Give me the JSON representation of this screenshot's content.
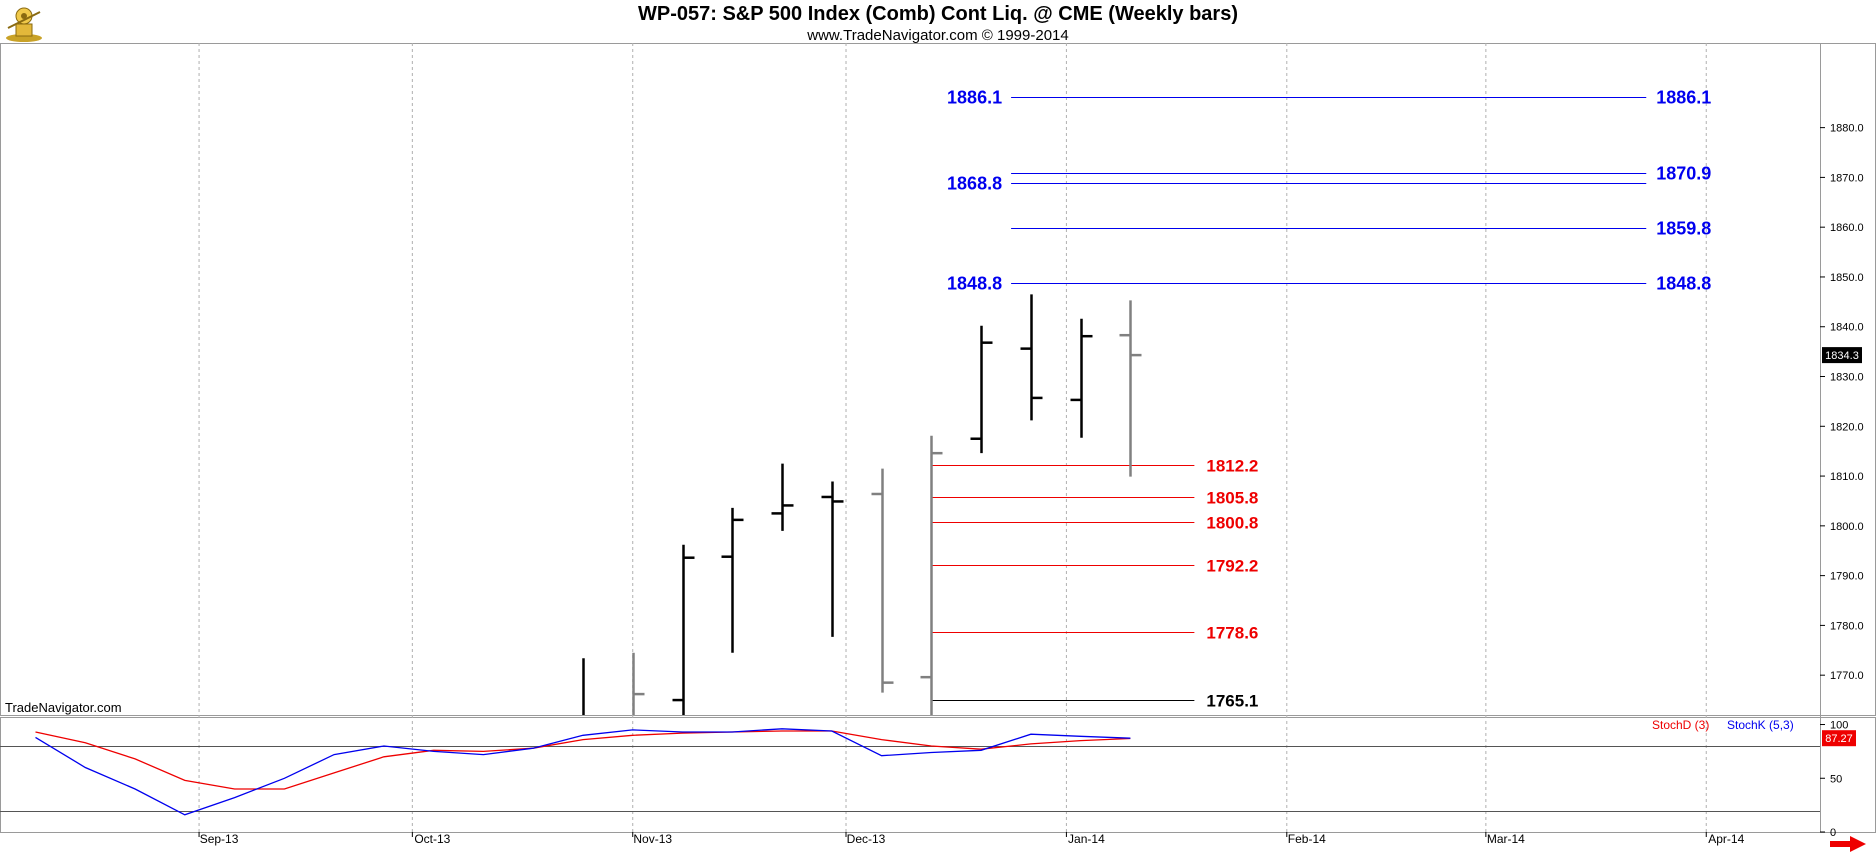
{
  "header": {
    "title": "WP-057:  S&P 500 Index (Comb) Cont Liq. @ CME  (Weekly bars)",
    "subtitle": "www.TradeNavigator.com © 1999-2014",
    "watermark": "TradeNavigator.com"
  },
  "colors": {
    "bar_up": "#000000",
    "bar_down": "#808080",
    "resistance": "#0000ee",
    "support": "#ee0000",
    "support_base": "#000000",
    "stoch_d": "#ee0000",
    "stoch_k": "#0000ee",
    "gridline": "#b0b0b0",
    "last_price_bg": "#000000",
    "stoch_value_bg": "#ee0000"
  },
  "chart_data": [
    {
      "type": "ohlc",
      "ylim": [
        1762,
        1897
      ],
      "yticks": [
        1770,
        1780,
        1790,
        1800,
        1810,
        1820,
        1830,
        1840,
        1850,
        1860,
        1870,
        1880
      ],
      "ytick_labels": [
        "1770.0",
        "1780.0",
        "1790.0",
        "1800.0",
        "1810.0",
        "1820.0",
        "1830.0",
        "1840.0",
        "1850.0",
        "1860.0",
        "1870.0",
        "1880.0"
      ],
      "xticks": [
        "2013-09-01",
        "2013-10-01",
        "2013-11-01",
        "2013-12-01",
        "2014-01-01",
        "2014-02-01",
        "2014-03-01",
        "2014-04-01"
      ],
      "xtick_labels": [
        "Sep-13",
        "Oct-13",
        "Nov-13",
        "Dec-13",
        "Jan-14",
        "Feb-14",
        "Mar-14",
        "Apr-14"
      ],
      "xrange": [
        "2013-08-04",
        "2014-04-17"
      ],
      "grid": true,
      "last_price": "1834.3",
      "bars": [
        {
          "date": "2013-10-25",
          "open": null,
          "high": 1773.4,
          "low": 1762,
          "close": null,
          "direction": "up",
          "clipped": true
        },
        {
          "date": "2013-11-01",
          "open": null,
          "high": 1774.5,
          "low": 1762,
          "close": 1766.2,
          "direction": "down",
          "clipped": true
        },
        {
          "date": "2013-11-08",
          "open": 1765,
          "high": 1796.2,
          "low": 1762,
          "close": 1793.6,
          "direction": "up",
          "clipped": true
        },
        {
          "date": "2013-11-15",
          "open": 1793.8,
          "high": 1803.6,
          "low": 1774.5,
          "close": 1801.2,
          "direction": "up"
        },
        {
          "date": "2013-11-22",
          "open": 1802.5,
          "high": 1812.5,
          "low": 1799,
          "close": 1804.1,
          "direction": "up"
        },
        {
          "date": "2013-11-29",
          "open": 1805.8,
          "high": 1808.9,
          "low": 1777.7,
          "close": 1804.9,
          "direction": "up"
        },
        {
          "date": "2013-12-06",
          "open": 1806.4,
          "high": 1811.5,
          "low": 1766.5,
          "close": 1768.5,
          "direction": "down"
        },
        {
          "date": "2013-12-13",
          "open": 1769.6,
          "high": 1818.1,
          "low": 1762,
          "close": 1814.6,
          "direction": "down",
          "clipped": true
        },
        {
          "date": "2013-12-20",
          "open": 1817.5,
          "high": 1840.2,
          "low": 1814.6,
          "close": 1836.8,
          "direction": "up"
        },
        {
          "date": "2013-12-27",
          "open": 1835.6,
          "high": 1846.5,
          "low": 1821.2,
          "close": 1825.7,
          "direction": "up"
        },
        {
          "date": "2014-01-03",
          "open": 1825.3,
          "high": 1841.6,
          "low": 1817.7,
          "close": 1838.1,
          "direction": "up"
        },
        {
          "date": "2014-01-10",
          "open": 1838.3,
          "high": 1845.3,
          "low": 1809.9,
          "close": 1834.3,
          "direction": "down"
        }
      ],
      "levels": [
        {
          "value": 1886.1,
          "label": "1886.1",
          "color": "resistance",
          "left_label": true,
          "right_label": true,
          "start": "2013-12-20",
          "end": "2014-04-01"
        },
        {
          "value": 1870.9,
          "label": "1870.9",
          "color": "resistance",
          "left_label": false,
          "right_label": true,
          "start": "2013-12-20",
          "end": "2014-04-01"
        },
        {
          "value": 1868.8,
          "label": "1868.8",
          "color": "resistance",
          "left_label": true,
          "right_label": false,
          "start": "2013-12-20",
          "end": "2014-04-01"
        },
        {
          "value": 1859.8,
          "label": "1859.8",
          "color": "resistance",
          "left_label": false,
          "right_label": true,
          "start": "2013-12-20",
          "end": "2014-04-01"
        },
        {
          "value": 1848.8,
          "label": "1848.8",
          "color": "resistance",
          "left_label": true,
          "right_label": true,
          "start": "2013-12-20",
          "end": "2014-04-01"
        },
        {
          "value": 1812.2,
          "label": "1812.2",
          "color": "support",
          "start": "2013-12-13",
          "end": "2014-01-19"
        },
        {
          "value": 1805.8,
          "label": "1805.8",
          "color": "support",
          "start": "2013-12-13",
          "end": "2014-01-19"
        },
        {
          "value": 1800.8,
          "label": "1800.8",
          "color": "support",
          "start": "2013-12-13",
          "end": "2014-01-19"
        },
        {
          "value": 1792.2,
          "label": "1792.2",
          "color": "support",
          "start": "2013-12-13",
          "end": "2014-01-19"
        },
        {
          "value": 1778.6,
          "label": "1778.6",
          "color": "support",
          "start": "2013-12-13",
          "end": "2014-01-19"
        },
        {
          "value": 1765.1,
          "label": "1765.1",
          "color": "support_base",
          "start": "2013-12-13",
          "end": "2014-01-19"
        }
      ]
    },
    {
      "type": "line",
      "legend": [
        "StochD (3)",
        "StochK (5,3)"
      ],
      "ylim": [
        0,
        107
      ],
      "yticks": [
        0,
        50,
        100
      ],
      "ytick_labels": [
        "0",
        "50",
        "100"
      ],
      "hlines": [
        20,
        80
      ],
      "last_value": "87.27",
      "x": [
        "2013-08-09",
        "2013-08-16",
        "2013-08-23",
        "2013-08-30",
        "2013-09-06",
        "2013-09-13",
        "2013-09-20",
        "2013-09-27",
        "2013-10-04",
        "2013-10-11",
        "2013-10-18",
        "2013-10-25",
        "2013-11-01",
        "2013-11-08",
        "2013-11-15",
        "2013-11-22",
        "2013-11-29",
        "2013-12-06",
        "2013-12-13",
        "2013-12-20",
        "2013-12-27",
        "2014-01-03",
        "2014-01-10"
      ],
      "series": [
        {
          "name": "StochD (3)",
          "values": [
            93,
            83,
            68,
            48,
            40,
            40,
            55,
            70,
            76,
            75,
            78,
            86,
            90,
            92,
            93,
            94,
            94,
            86,
            80,
            77,
            82,
            85,
            87
          ]
        },
        {
          "name": "StochK (5,3)",
          "values": [
            88,
            60,
            40,
            16,
            32,
            50,
            72,
            80,
            75,
            72,
            78,
            90,
            95,
            93,
            93,
            96,
            94,
            71,
            74,
            76,
            91,
            89,
            87.27
          ]
        }
      ]
    }
  ]
}
